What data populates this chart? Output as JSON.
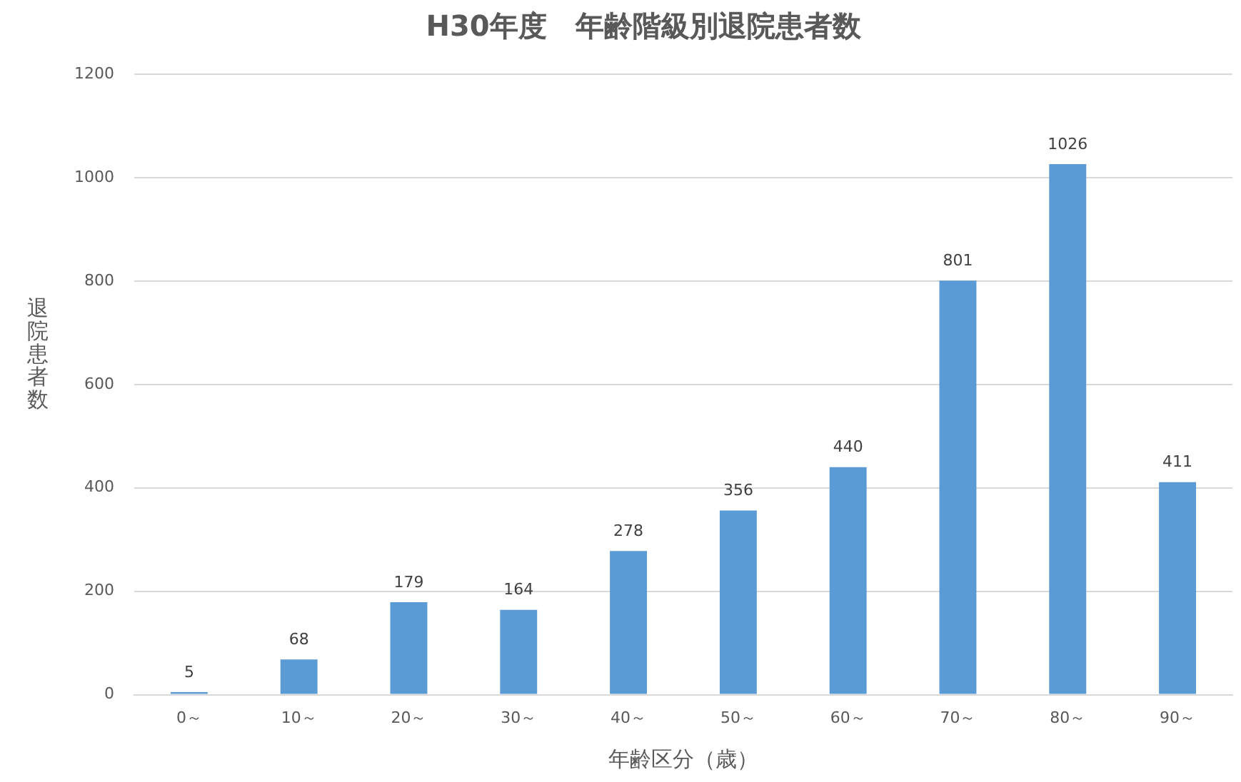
{
  "chart_data": {
    "type": "bar",
    "title": "H30年度　年齢階級別退院患者数",
    "xlabel": "年齢区分（歳）",
    "ylabel": "退院患者数",
    "categories": [
      "0～",
      "10～",
      "20～",
      "30～",
      "40～",
      "50～",
      "60～",
      "70～",
      "80～",
      "90～"
    ],
    "values": [
      5,
      68,
      179,
      164,
      278,
      356,
      440,
      801,
      1026,
      411
    ],
    "color": "#5b9bd5",
    "ylim": [
      0,
      1200
    ],
    "yticks": [
      0,
      200,
      400,
      600,
      800,
      1000,
      1200
    ],
    "grid": "y",
    "data_labels": true
  }
}
